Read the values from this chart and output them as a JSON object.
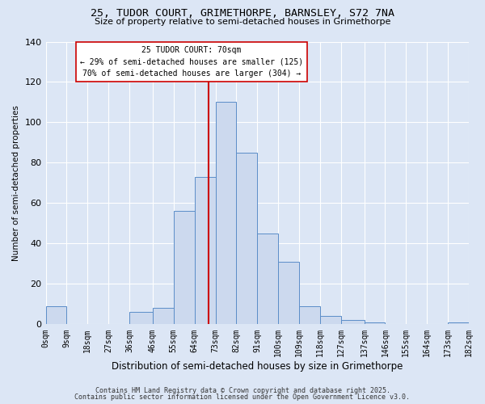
{
  "title_line1": "25, TUDOR COURT, GRIMETHORPE, BARNSLEY, S72 7NA",
  "title_line2": "Size of property relative to semi-detached houses in Grimethorpe",
  "xlabel": "Distribution of semi-detached houses by size in Grimethorpe",
  "ylabel": "Number of semi-detached properties",
  "bin_edges": [
    0,
    9,
    18,
    27,
    36,
    46,
    55,
    64,
    73,
    82,
    91,
    100,
    109,
    118,
    127,
    137,
    146,
    155,
    164,
    173,
    182
  ],
  "counts": [
    9,
    0,
    0,
    0,
    6,
    8,
    56,
    73,
    110,
    85,
    45,
    31,
    9,
    4,
    2,
    1,
    0,
    0,
    0,
    1
  ],
  "property_size": 70,
  "bar_facecolor": "#ccd9ee",
  "bar_edgecolor": "#5b8dc8",
  "vline_color": "#cc0000",
  "bg_color": "#dce6f5",
  "grid_color": "#ffffff",
  "annotation_box_color": "#ffffff",
  "annotation_box_edge": "#cc0000",
  "annotation_text": "25 TUDOR COURT: 70sqm",
  "annotation_line1": "← 29% of semi-detached houses are smaller (125)",
  "annotation_line2": "70% of semi-detached houses are larger (304) →",
  "footer_line1": "Contains HM Land Registry data © Crown copyright and database right 2025.",
  "footer_line2": "Contains public sector information licensed under the Open Government Licence v3.0.",
  "ylim": [
    0,
    140
  ],
  "yticks": [
    0,
    20,
    40,
    60,
    80,
    100,
    120,
    140
  ],
  "tick_labels": [
    "0sqm",
    "9sqm",
    "18sqm",
    "27sqm",
    "36sqm",
    "46sqm",
    "55sqm",
    "64sqm",
    "73sqm",
    "82sqm",
    "91sqm",
    "100sqm",
    "109sqm",
    "118sqm",
    "127sqm",
    "137sqm",
    "146sqm",
    "155sqm",
    "164sqm",
    "173sqm",
    "182sqm"
  ]
}
